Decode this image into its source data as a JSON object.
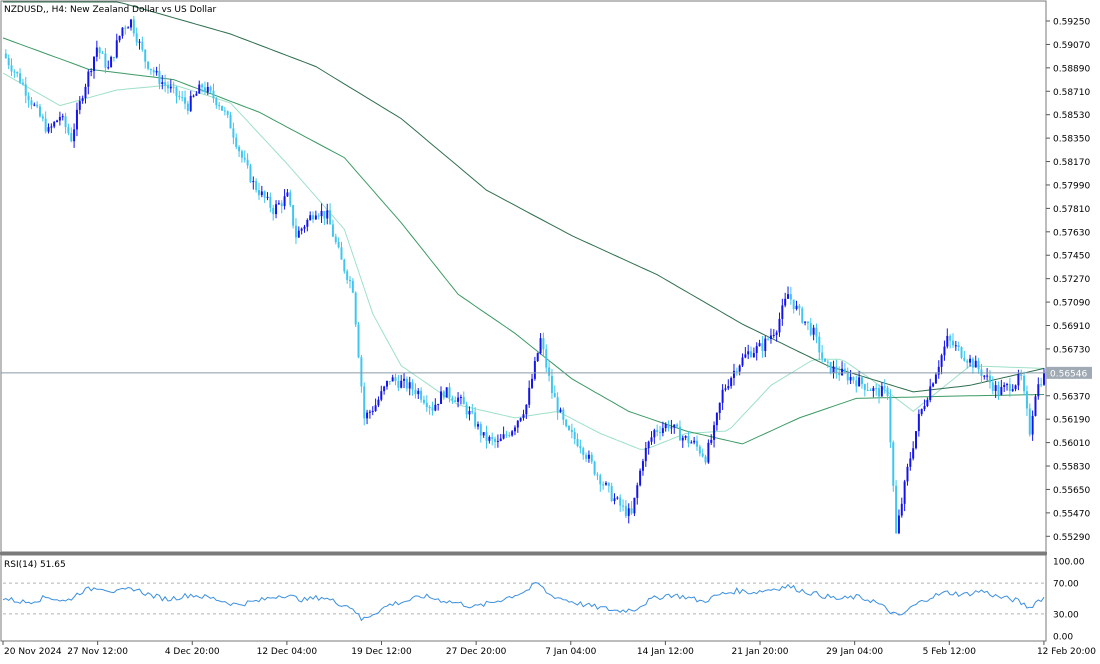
{
  "symbol_label": "NZDUSD,, H4:  New Zealand Dollar vs US Dollar",
  "rsi_label": "RSI(14) 51.65",
  "current_price": "0.56546",
  "colors": {
    "bull": "#1414e6",
    "bear": "#3ec6f0",
    "ma_fast": "#9ee0c8",
    "ma_mid": "#3c9a64",
    "ma_slow": "#2e6e4e",
    "rsi": "#3a8fe0",
    "grid": "#b4b4b4",
    "axis_text": "#000000",
    "price_line": "#8a9aa8",
    "price_label_bg": "#a0aab4"
  },
  "chart_data": [
    {
      "type": "candlestick",
      "title": "NZDUSD,, H4:  New Zealand Dollar vs US Dollar",
      "ylim": [
        0.552,
        0.5935
      ],
      "yticks": [
        "0.59250",
        "0.59070",
        "0.58890",
        "0.58710",
        "0.58530",
        "0.58350",
        "0.58170",
        "0.57990",
        "0.57810",
        "0.57630",
        "0.57450",
        "0.57270",
        "0.57090",
        "0.56910",
        "0.56730",
        "0.56370",
        "0.56190",
        "0.56010",
        "0.55830",
        "0.55650",
        "0.55470",
        "0.55290"
      ],
      "xticks": [
        "20 Nov 2024",
        "27 Nov 12:00",
        "4 Dec 20:00",
        "12 Dec 04:00",
        "19 Dec 12:00",
        "27 Dec 20:00",
        "7 Jan 04:00",
        "14 Jan 12:00",
        "21 Jan 20:00",
        "29 Jan 04:00",
        "5 Feb 12:00",
        "12 Feb 20:00"
      ],
      "current_price": 0.56546,
      "close_path": [
        [
          0,
          0.59
        ],
        [
          6,
          0.588
        ],
        [
          12,
          0.5855
        ],
        [
          16,
          0.584
        ],
        [
          20,
          0.5852
        ],
        [
          24,
          0.5835
        ],
        [
          28,
          0.587
        ],
        [
          33,
          0.5905
        ],
        [
          37,
          0.5888
        ],
        [
          42,
          0.592
        ],
        [
          45,
          0.5925
        ],
        [
          50,
          0.5895
        ],
        [
          55,
          0.588
        ],
        [
          60,
          0.587
        ],
        [
          65,
          0.586
        ],
        [
          70,
          0.5875
        ],
        [
          76,
          0.5862
        ],
        [
          80,
          0.5845
        ],
        [
          84,
          0.582
        ],
        [
          88,
          0.58
        ],
        [
          95,
          0.578
        ],
        [
          100,
          0.579
        ],
        [
          103,
          0.576
        ],
        [
          110,
          0.578
        ],
        [
          114,
          0.5775
        ],
        [
          119,
          0.574
        ],
        [
          123,
          0.572
        ],
        [
          127,
          0.562
        ],
        [
          131,
          0.563
        ],
        [
          136,
          0.565
        ],
        [
          142,
          0.5645
        ],
        [
          146,
          0.564
        ],
        [
          151,
          0.5628
        ],
        [
          155,
          0.564
        ],
        [
          160,
          0.5635
        ],
        [
          165,
          0.562
        ],
        [
          169,
          0.5605
        ],
        [
          174,
          0.56
        ],
        [
          179,
          0.5612
        ],
        [
          184,
          0.563
        ],
        [
          189,
          0.568
        ],
        [
          193,
          0.564
        ],
        [
          198,
          0.561
        ],
        [
          203,
          0.56
        ],
        [
          208,
          0.558
        ],
        [
          214,
          0.556
        ],
        [
          218,
          0.555
        ],
        [
          221,
          0.5545
        ],
        [
          225,
          0.559
        ],
        [
          229,
          0.561
        ],
        [
          234,
          0.5615
        ],
        [
          239,
          0.5605
        ],
        [
          243,
          0.56
        ],
        [
          247,
          0.559
        ],
        [
          250,
          0.561
        ],
        [
          253,
          0.564
        ],
        [
          258,
          0.566
        ],
        [
          262,
          0.567
        ],
        [
          267,
          0.5675
        ],
        [
          272,
          0.569
        ],
        [
          276,
          0.5715
        ],
        [
          280,
          0.57
        ],
        [
          285,
          0.5685
        ],
        [
          289,
          0.566
        ],
        [
          294,
          0.5655
        ],
        [
          299,
          0.565
        ],
        [
          303,
          0.5645
        ],
        [
          307,
          0.564
        ],
        [
          311,
          0.564
        ],
        [
          314,
          0.553
        ],
        [
          318,
          0.558
        ],
        [
          322,
          0.562
        ],
        [
          327,
          0.565
        ],
        [
          332,
          0.568
        ],
        [
          337,
          0.567
        ],
        [
          342,
          0.566
        ],
        [
          346,
          0.565
        ],
        [
          350,
          0.564
        ],
        [
          354,
          0.5645
        ],
        [
          358,
          0.565
        ],
        [
          361,
          0.561
        ],
        [
          363,
          0.564
        ],
        [
          366,
          0.56546
        ]
      ],
      "moving_averages": [
        {
          "points": [
            [
              0,
              0.5885
            ],
            [
              20,
              0.586
            ],
            [
              40,
              0.5872
            ],
            [
              60,
              0.5876
            ],
            [
              80,
              0.5862
            ],
            [
              100,
              0.5815
            ],
            [
              120,
              0.5765
            ],
            [
              130,
              0.57
            ],
            [
              140,
              0.566
            ],
            [
              160,
              0.563
            ],
            [
              180,
              0.562
            ],
            [
              195,
              0.5625
            ],
            [
              210,
              0.5608
            ],
            [
              225,
              0.5595
            ],
            [
              240,
              0.5608
            ],
            [
              255,
              0.561
            ],
            [
              270,
              0.5645
            ],
            [
              285,
              0.5665
            ],
            [
              295,
              0.5665
            ],
            [
              305,
              0.565
            ],
            [
              320,
              0.5625
            ],
            [
              340,
              0.566
            ],
            [
              366,
              0.5658
            ]
          ]
        },
        {
          "points": [
            [
              0,
              0.5912
            ],
            [
              30,
              0.5888
            ],
            [
              60,
              0.588
            ],
            [
              90,
              0.5855
            ],
            [
              120,
              0.582
            ],
            [
              140,
              0.577
            ],
            [
              160,
              0.5715
            ],
            [
              180,
              0.5685
            ],
            [
              200,
              0.565
            ],
            [
              220,
              0.5625
            ],
            [
              240,
              0.561
            ],
            [
              260,
              0.56
            ],
            [
              280,
              0.562
            ],
            [
              300,
              0.5635
            ],
            [
              320,
              0.5636
            ],
            [
              340,
              0.5637
            ],
            [
              366,
              0.5638
            ]
          ]
        },
        {
          "points": [
            [
              0,
              0.598
            ],
            [
              40,
              0.594
            ],
            [
              80,
              0.5915
            ],
            [
              110,
              0.589
            ],
            [
              140,
              0.585
            ],
            [
              170,
              0.5795
            ],
            [
              200,
              0.576
            ],
            [
              230,
              0.573
            ],
            [
              260,
              0.5692
            ],
            [
              290,
              0.566
            ],
            [
              320,
              0.564
            ],
            [
              340,
              0.5645
            ],
            [
              366,
              0.5658
            ]
          ]
        }
      ]
    },
    {
      "type": "line",
      "title": "RSI(14) 51.65",
      "ylim": [
        0,
        100
      ],
      "yticks": [
        "100.00",
        "70.00",
        "30.00",
        "0.00"
      ],
      "levels": [
        70,
        30
      ],
      "last_value": 51.65,
      "series_points": [
        [
          0,
          50
        ],
        [
          8,
          45
        ],
        [
          16,
          52
        ],
        [
          22,
          46
        ],
        [
          28,
          60
        ],
        [
          34,
          65
        ],
        [
          40,
          58
        ],
        [
          46,
          63
        ],
        [
          52,
          54
        ],
        [
          58,
          49
        ],
        [
          66,
          55
        ],
        [
          74,
          50
        ],
        [
          82,
          42
        ],
        [
          90,
          47
        ],
        [
          98,
          55
        ],
        [
          106,
          48
        ],
        [
          112,
          52
        ],
        [
          118,
          44
        ],
        [
          123,
          38
        ],
        [
          126,
          22
        ],
        [
          130,
          30
        ],
        [
          136,
          42
        ],
        [
          142,
          47
        ],
        [
          148,
          53
        ],
        [
          154,
          48
        ],
        [
          160,
          44
        ],
        [
          166,
          39
        ],
        [
          172,
          45
        ],
        [
          178,
          52
        ],
        [
          184,
          60
        ],
        [
          188,
          70
        ],
        [
          192,
          55
        ],
        [
          198,
          48
        ],
        [
          204,
          42
        ],
        [
          210,
          38
        ],
        [
          216,
          34
        ],
        [
          222,
          36
        ],
        [
          228,
          49
        ],
        [
          234,
          55
        ],
        [
          240,
          52
        ],
        [
          246,
          46
        ],
        [
          252,
          55
        ],
        [
          258,
          60
        ],
        [
          264,
          58
        ],
        [
          270,
          62
        ],
        [
          276,
          66
        ],
        [
          282,
          59
        ],
        [
          288,
          54
        ],
        [
          294,
          49
        ],
        [
          300,
          52
        ],
        [
          306,
          47
        ],
        [
          312,
          33
        ],
        [
          315,
          26
        ],
        [
          320,
          40
        ],
        [
          326,
          52
        ],
        [
          332,
          58
        ],
        [
          338,
          55
        ],
        [
          344,
          60
        ],
        [
          350,
          52
        ],
        [
          356,
          48
        ],
        [
          361,
          38
        ],
        [
          363,
          45
        ],
        [
          366,
          51.65
        ]
      ]
    }
  ]
}
